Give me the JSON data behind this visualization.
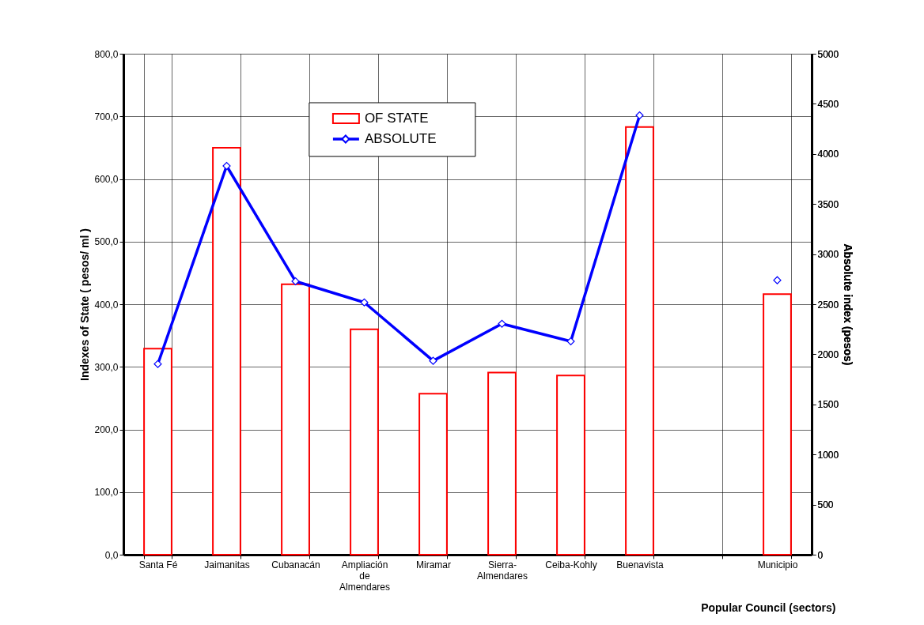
{
  "chart_data": {
    "type": "bar",
    "xlabel": "Popular Council (sectors)",
    "ylabel": "Indexes of State ( pesos/ ml )",
    "y2label": "Absolute index (pesos)",
    "categories": [
      "Santa Fé",
      "Jaimanitas",
      "Cubanacán",
      "Ampliación de Almendares",
      "Miramar",
      "Sierra-Almendares",
      "Ceiba-Kohly",
      "Buenavista",
      null,
      "Municipio"
    ],
    "series": [
      {
        "name": "OF STATE",
        "color": "#ff0000",
        "values": [
          329,
          650,
          432,
          360,
          257,
          291,
          286,
          683,
          null,
          416
        ]
      },
      {
        "name": "ABSOLUTE",
        "type": "line",
        "axis": "y2",
        "color": "#0000ff",
        "marker": "diamond",
        "values": [
          1903,
          3880,
          2729,
          2518,
          1935,
          2305,
          2129,
          4385,
          null,
          2739
        ]
      }
    ],
    "ylim": [
      0,
      800
    ],
    "yticks": [
      {
        "value": 0,
        "label": "0,0"
      },
      {
        "value": 100,
        "label": "100,0"
      },
      {
        "value": 200,
        "label": "200,0"
      },
      {
        "value": 300,
        "label": "300,0"
      },
      {
        "value": 400,
        "label": "400,0"
      },
      {
        "value": 500,
        "label": "500,0"
      },
      {
        "value": 600,
        "label": "600,0"
      },
      {
        "value": 700,
        "label": "700,0"
      },
      {
        "value": 800,
        "label": "800,0"
      }
    ],
    "y2lim": [
      0,
      5000
    ],
    "y2ticks": [
      0,
      500,
      1000,
      1500,
      2000,
      2500,
      3000,
      3500,
      4000,
      4500,
      5000
    ],
    "grid": true,
    "legend": "top"
  }
}
